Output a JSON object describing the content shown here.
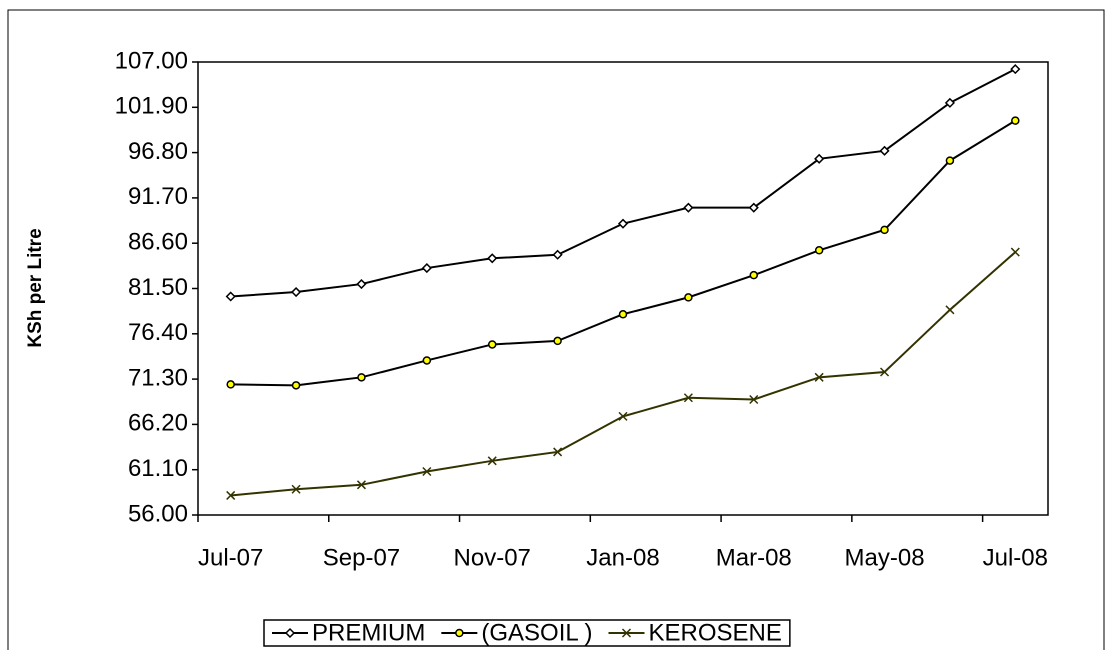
{
  "chart_data": {
    "type": "line",
    "y_label": "KSh per Litre",
    "categories": [
      "Jul-07",
      null,
      "Sep-07",
      null,
      "Nov-07",
      null,
      "Jan-08",
      null,
      "Mar-08",
      null,
      "May-08",
      null,
      "Jul-08"
    ],
    "series": [
      {
        "name": "PREMIUM",
        "color": "#000000",
        "marker": "diamond",
        "values": [
          80.6,
          81.1,
          82.0,
          83.8,
          84.9,
          85.3,
          88.8,
          90.6,
          90.6,
          96.1,
          97.0,
          102.4,
          106.2
        ]
      },
      {
        "name": "(GASOIL )",
        "color": "#000000",
        "marker": "circle",
        "values": [
          70.7,
          70.6,
          71.5,
          73.4,
          75.2,
          75.6,
          78.6,
          80.5,
          83.0,
          85.8,
          88.1,
          95.9,
          100.4
        ]
      },
      {
        "name": "KEROSENE",
        "color": "#333300",
        "marker": "x",
        "values": [
          58.2,
          58.9,
          59.4,
          60.9,
          62.1,
          63.1,
          67.1,
          69.2,
          69.0,
          71.5,
          72.1,
          79.1,
          85.6
        ]
      }
    ],
    "ylim": [
      56,
      107
    ],
    "yticks": [
      {
        "value": 56,
        "label": "56.00"
      },
      {
        "value": 61.1,
        "label": "61.10"
      },
      {
        "value": 66.2,
        "label": "66.20"
      },
      {
        "value": 71.3,
        "label": "71.30"
      },
      {
        "value": 76.4,
        "label": "76.40"
      },
      {
        "value": 81.5,
        "label": "81.50"
      },
      {
        "value": 86.6,
        "label": "86.60"
      },
      {
        "value": 91.7,
        "label": "91.70"
      },
      {
        "value": 96.8,
        "label": "96.80"
      },
      {
        "value": 101.9,
        "label": "101.90"
      },
      {
        "value": 107,
        "label": "107.00"
      }
    ],
    "grid": false,
    "legend": "bottom"
  }
}
